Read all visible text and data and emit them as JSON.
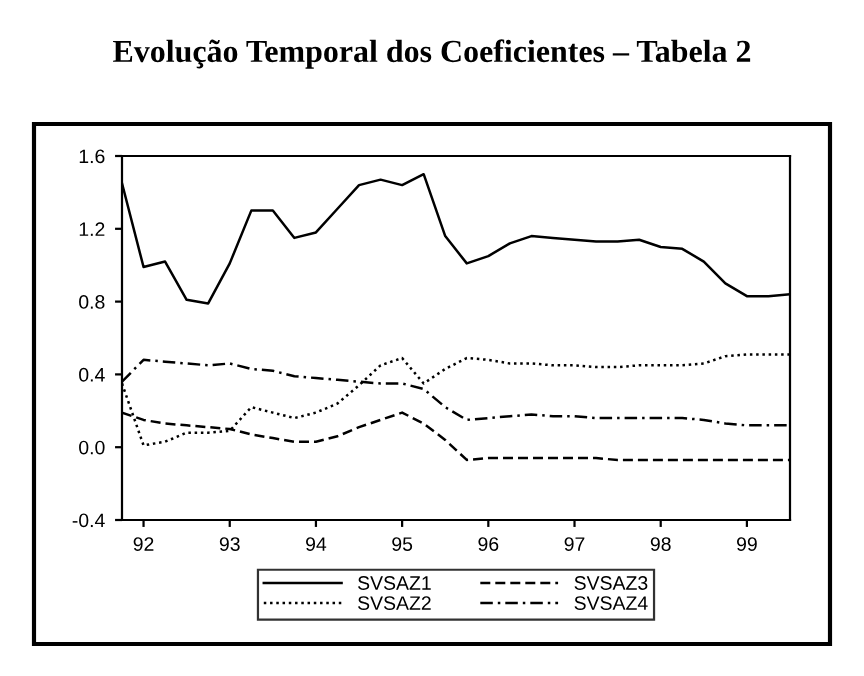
{
  "chart_data": {
    "type": "line",
    "title": "Evolução Temporal dos Coeficientes – Tabela 2",
    "x": [
      1991.75,
      1992.0,
      1992.25,
      1992.5,
      1992.75,
      1993.0,
      1993.25,
      1993.5,
      1993.75,
      1994.0,
      1994.25,
      1994.5,
      1994.75,
      1995.0,
      1995.25,
      1995.5,
      1995.75,
      1996.0,
      1996.25,
      1996.5,
      1996.75,
      1997.0,
      1997.25,
      1997.5,
      1997.75,
      1998.0,
      1998.25,
      1998.5,
      1998.75,
      1999.0,
      1999.25,
      1999.5
    ],
    "series": [
      {
        "name": "SVSAZ1",
        "color": "#000000",
        "line_style": "solid",
        "values": [
          1.45,
          0.99,
          1.02,
          0.81,
          0.79,
          1.01,
          1.3,
          1.3,
          1.15,
          1.18,
          1.31,
          1.44,
          1.47,
          1.44,
          1.5,
          1.16,
          1.01,
          1.05,
          1.12,
          1.16,
          1.15,
          1.14,
          1.13,
          1.13,
          1.14,
          1.1,
          1.09,
          1.02,
          0.9,
          0.83,
          0.83,
          0.84
        ]
      },
      {
        "name": "SVSAZ2",
        "color": "#000000",
        "line_style": "dotted",
        "values": [
          0.35,
          0.01,
          0.03,
          0.08,
          0.08,
          0.09,
          0.22,
          0.19,
          0.16,
          0.19,
          0.24,
          0.34,
          0.45,
          0.49,
          0.35,
          0.43,
          0.49,
          0.48,
          0.46,
          0.46,
          0.45,
          0.45,
          0.44,
          0.44,
          0.45,
          0.45,
          0.45,
          0.46,
          0.5,
          0.51,
          0.51,
          0.51
        ]
      },
      {
        "name": "SVSAZ3",
        "color": "#000000",
        "line_style": "dashed",
        "values": [
          0.19,
          0.15,
          0.13,
          0.12,
          0.11,
          0.1,
          0.07,
          0.05,
          0.03,
          0.03,
          0.06,
          0.11,
          0.15,
          0.19,
          0.13,
          0.04,
          -0.07,
          -0.06,
          -0.06,
          -0.06,
          -0.06,
          -0.06,
          -0.06,
          -0.07,
          -0.07,
          -0.07,
          -0.07,
          -0.07,
          -0.07,
          -0.07,
          -0.07,
          -0.07
        ]
      },
      {
        "name": "SVSAZ4",
        "color": "#000000",
        "line_style": "dashdot",
        "values": [
          0.36,
          0.48,
          0.47,
          0.46,
          0.45,
          0.46,
          0.43,
          0.42,
          0.39,
          0.38,
          0.37,
          0.36,
          0.35,
          0.35,
          0.32,
          0.22,
          0.15,
          0.16,
          0.17,
          0.18,
          0.17,
          0.17,
          0.16,
          0.16,
          0.16,
          0.16,
          0.16,
          0.15,
          0.13,
          0.12,
          0.12,
          0.12
        ]
      }
    ],
    "xlim": [
      1991.75,
      1999.5
    ],
    "xticks": [
      {
        "value": 1992,
        "label": "92"
      },
      {
        "value": 1993,
        "label": "93"
      },
      {
        "value": 1994,
        "label": "94"
      },
      {
        "value": 1995,
        "label": "95"
      },
      {
        "value": 1996,
        "label": "96"
      },
      {
        "value": 1997,
        "label": "97"
      },
      {
        "value": 1998,
        "label": "98"
      },
      {
        "value": 1999,
        "label": "99"
      }
    ],
    "ylim": [
      -0.4,
      1.6
    ],
    "yticks": [
      {
        "value": -0.4,
        "label": "-0.4"
      },
      {
        "value": 0.0,
        "label": "0.0"
      },
      {
        "value": 0.4,
        "label": "0.4"
      },
      {
        "value": 0.8,
        "label": "0.8"
      },
      {
        "value": 1.2,
        "label": "1.2"
      },
      {
        "value": 1.6,
        "label": "1.6"
      }
    ],
    "grid": false,
    "legend": "bottom"
  }
}
